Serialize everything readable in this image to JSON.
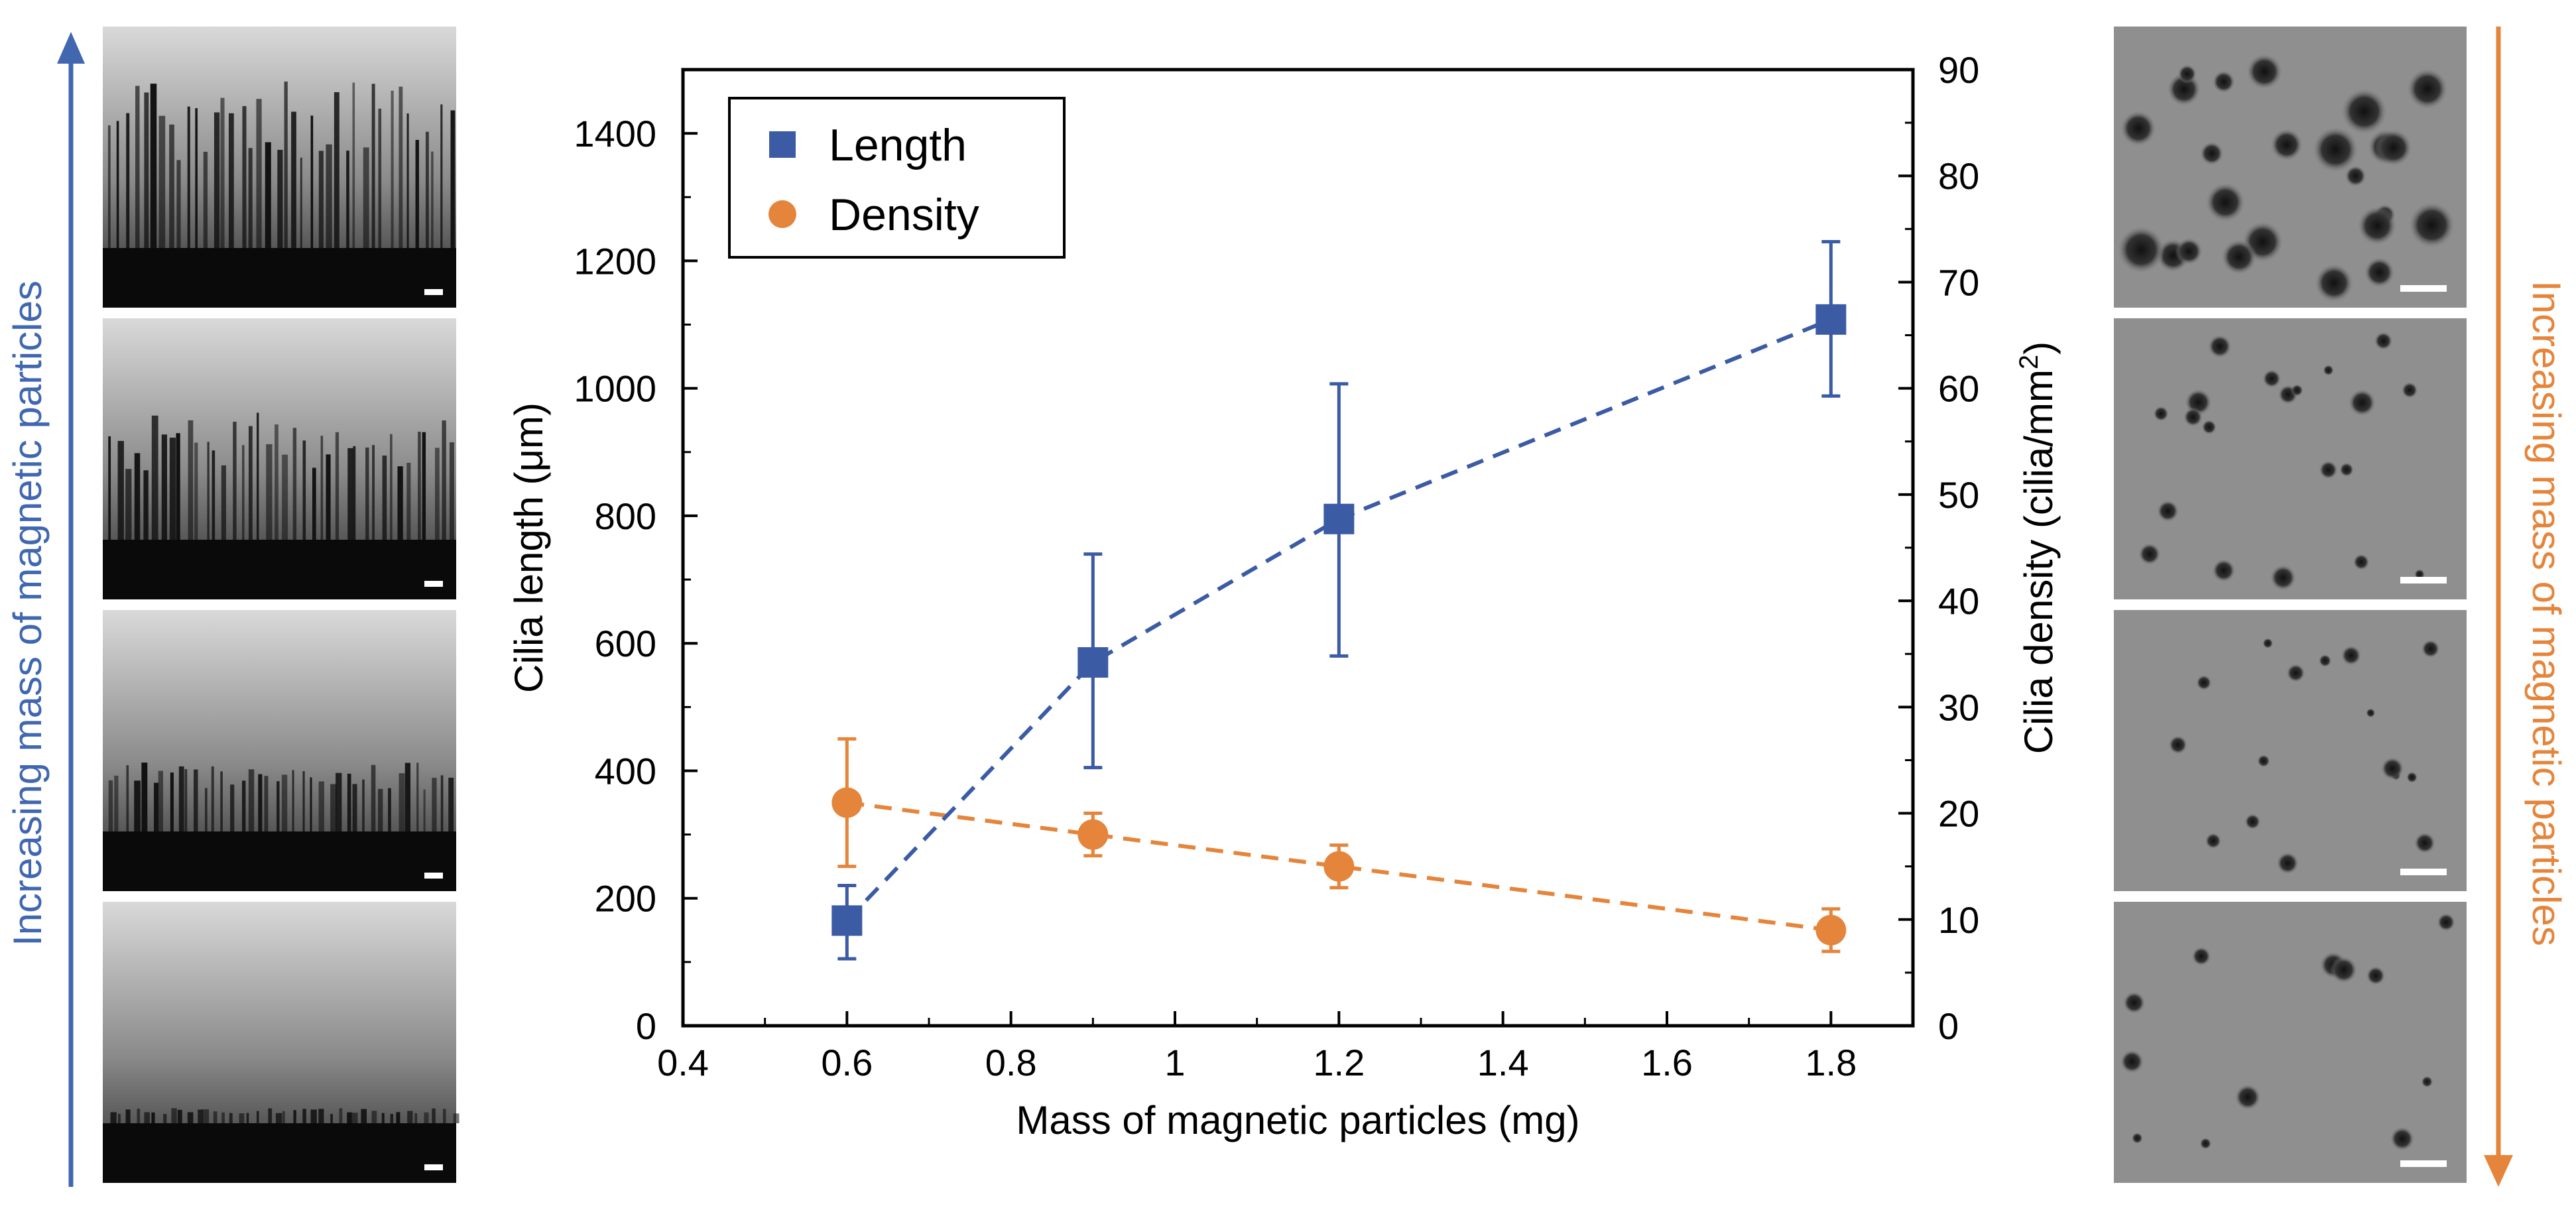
{
  "left_panel": {
    "arrow_label": "Increasing mass of magnetic particles",
    "arrow_color": "#4067b0",
    "images": [
      "side-view-cilia-1.8mg",
      "side-view-cilia-1.2mg",
      "side-view-cilia-0.9mg",
      "side-view-cilia-0.6mg"
    ]
  },
  "right_panel": {
    "arrow_label": "Increasing mass of magnetic particles",
    "arrow_color": "#e5853b",
    "images": [
      "top-view-cilia-0.6mg",
      "top-view-cilia-0.9mg",
      "top-view-cilia-1.2mg",
      "top-view-cilia-1.8mg"
    ]
  },
  "chart_data": {
    "type": "scatter",
    "xlabel": "Mass of magnetic particles (mg)",
    "ylabel_left": "Cilia length (μm)",
    "ylabel_right_main": "Cilia density (cilia/mm",
    "ylabel_right_sup": "2",
    "ylabel_right_close": ")",
    "xlim": [
      0.4,
      1.9
    ],
    "xticks": [
      0.4,
      0.6,
      0.8,
      1.0,
      1.2,
      1.4,
      1.6,
      1.8
    ],
    "xtick_labels": [
      "0.4",
      "0.6",
      "0.8",
      "1",
      "1.2",
      "1.4",
      "1.6",
      "1.8"
    ],
    "ylim_left": [
      0,
      1500
    ],
    "yticks_left": [
      0,
      200,
      400,
      600,
      800,
      1000,
      1200,
      1400
    ],
    "ylim_right": [
      0,
      90
    ],
    "yticks_right": [
      0,
      10,
      20,
      30,
      40,
      50,
      60,
      70,
      80,
      90
    ],
    "legend_position": "top-left",
    "series": [
      {
        "name": "Length",
        "axis": "left",
        "marker": "square",
        "color": "#3b5ba5",
        "x": [
          0.6,
          0.9,
          1.2,
          1.8
        ],
        "values": [
          165,
          570,
          795,
          1108
        ],
        "err_low": [
          60,
          165,
          215,
          120
        ],
        "err_high": [
          55,
          170,
          212,
          122
        ]
      },
      {
        "name": "Density",
        "axis": "right",
        "marker": "circle",
        "color": "#e5853b",
        "x": [
          0.6,
          0.9,
          1.2,
          1.8
        ],
        "values": [
          21,
          18,
          15,
          9
        ],
        "err_low": [
          6,
          2,
          2,
          2
        ],
        "err_high": [
          6,
          2,
          2,
          2
        ]
      }
    ]
  }
}
